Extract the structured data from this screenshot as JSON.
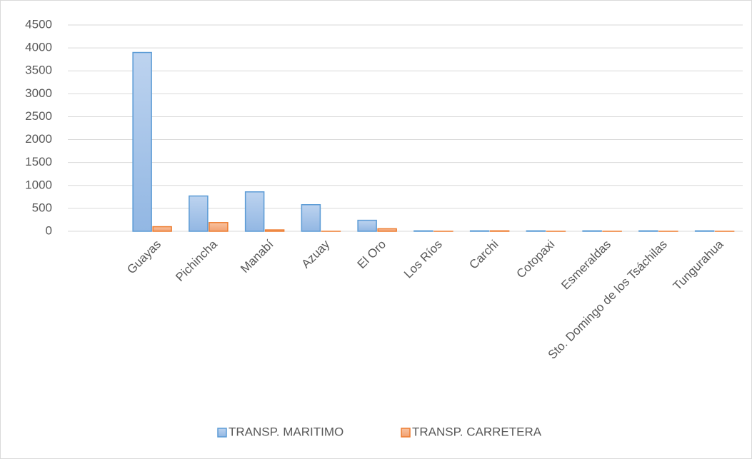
{
  "chart_data": {
    "type": "bar",
    "categories": [
      null,
      "Guayas",
      "Pichincha",
      "Manabí",
      "Azuay",
      "El Oro",
      "Los Ríos",
      "Carchi",
      "Cotopaxi",
      "Esmeraldas",
      "Sto. Domingo de los Tsáchilas",
      "Tungurahua"
    ],
    "series": [
      {
        "name": "TRANSP. MARITIMO",
        "color": "#5b9bd5",
        "values": [
          null,
          3900,
          770,
          860,
          580,
          240,
          10,
          10,
          10,
          10,
          10,
          10
        ]
      },
      {
        "name": "TRANSP. CARRETERA",
        "color": "#ed7d31",
        "values": [
          null,
          100,
          190,
          30,
          0,
          55,
          0,
          10,
          0,
          0,
          0,
          0
        ]
      }
    ],
    "ylim": [
      0,
      4500
    ],
    "yticks": [
      0,
      500,
      1000,
      1500,
      2000,
      2500,
      3000,
      3500,
      4000,
      4500
    ],
    "grid": true,
    "legend": "bottom"
  }
}
